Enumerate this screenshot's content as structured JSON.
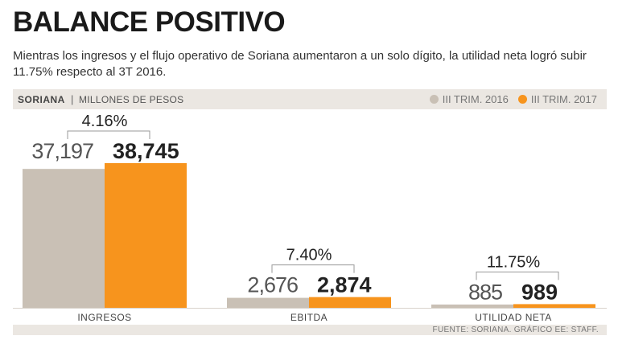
{
  "chart_data": {
    "type": "bar",
    "title": "BALANCE POSITIVO",
    "subtitle": "Mientras los ingresos y el flujo operativo de Soriana aumentaron a un solo dígito, la utilidad neta logró subir 11.75% respecto al 3T 2016.",
    "brand": "SORIANA",
    "units": "MILLONES DE PESOS",
    "categories": [
      "INGRESOS",
      "EBITDA",
      "UTILIDAD NETA"
    ],
    "series": [
      {
        "name": "III TRIM. 2016",
        "color": "#c9c0b5",
        "values": [
          37197,
          2676,
          885
        ],
        "labels": [
          "37,197",
          "2,676",
          "885"
        ]
      },
      {
        "name": "III TRIM. 2017",
        "color": "#f7941d",
        "values": [
          38745,
          2874,
          989
        ],
        "labels": [
          "38,745",
          "2,874",
          "989"
        ]
      }
    ],
    "changes": [
      "4.16%",
      "7.40%",
      "11.75%"
    ],
    "source": "FUENTE: SORIANA. GRÁFICO EE: STAFF.",
    "ylim": [
      0,
      38745
    ]
  }
}
